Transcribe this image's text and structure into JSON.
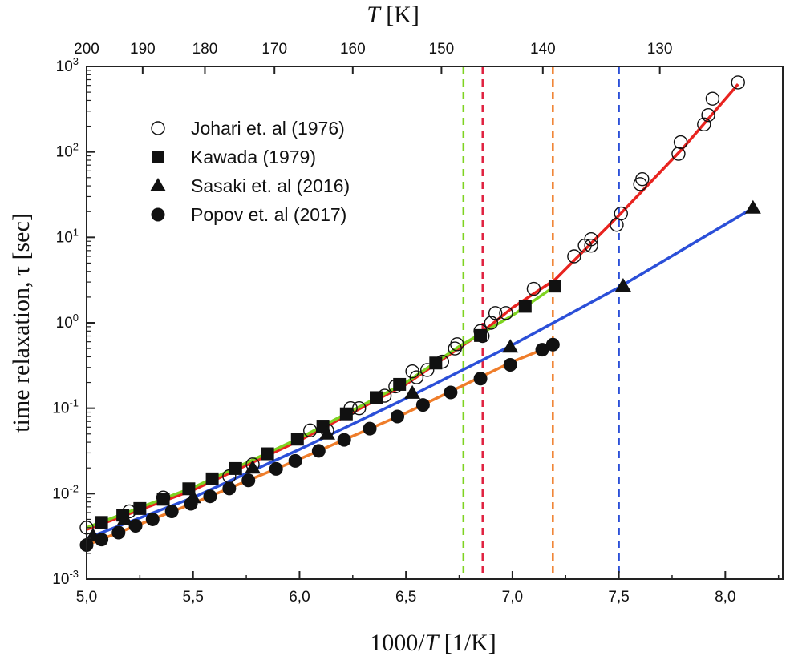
{
  "chart_data": {
    "type": "scatter",
    "title": "",
    "xlabel": "1000/T [1/K]",
    "xlabel_parts": {
      "pre": "1000/",
      "italic": "T",
      "post": " [1/K]"
    },
    "ylabel": "time relaxation, τ [sec]",
    "top_xlabel": {
      "italic": "T",
      "post": " [K]"
    },
    "xlim": [
      5.0,
      8.27
    ],
    "ylim": [
      0.001,
      1000
    ],
    "yscale": "log",
    "x_ticks": [
      "5,0",
      "5,5",
      "6,0",
      "6,5",
      "7,0",
      "7,5",
      "8,0"
    ],
    "x_tick_values": [
      5.0,
      5.5,
      6.0,
      6.5,
      7.0,
      7.5,
      8.0
    ],
    "y_tick_exponents": [
      "-3",
      "-2",
      "-1",
      "0",
      "1",
      "2",
      "3"
    ],
    "y_tick_base": "10",
    "top_ticks": [
      "200",
      "190",
      "180",
      "170",
      "160",
      "150",
      "140",
      "130"
    ],
    "top_tick_values_K": [
      200,
      190,
      180,
      170,
      160,
      150,
      140,
      130
    ],
    "legend_placement": "top-left",
    "series": [
      {
        "name": "Johari et. al (1976)",
        "marker": "open-circle",
        "x": [
          5.0,
          5.2,
          5.36,
          5.67,
          5.78,
          6.05,
          6.13,
          6.24,
          6.28,
          6.4,
          6.45,
          6.53,
          6.55,
          6.6,
          6.67,
          6.73,
          6.74,
          6.85,
          6.86,
          6.9,
          6.92,
          6.97,
          7.1,
          7.29,
          7.34,
          7.37,
          7.37,
          7.49,
          7.51,
          7.6,
          7.61,
          7.78,
          7.79,
          7.9,
          7.92,
          7.94,
          8.06
        ],
        "y": [
          0.004,
          0.0062,
          0.009,
          0.016,
          0.022,
          0.055,
          0.055,
          0.1,
          0.1,
          0.14,
          0.18,
          0.27,
          0.23,
          0.28,
          0.35,
          0.5,
          0.56,
          0.8,
          0.7,
          1.0,
          1.3,
          1.3,
          2.5,
          6,
          8,
          8,
          9.5,
          14,
          19,
          42,
          48,
          95,
          130,
          210,
          270,
          420,
          650
        ]
      },
      {
        "name": "Kawada (1979)",
        "marker": "filled-square",
        "x": [
          5.07,
          5.17,
          5.25,
          5.36,
          5.48,
          5.59,
          5.7,
          5.85,
          5.99,
          6.11,
          6.22,
          6.36,
          6.47,
          6.64,
          6.85,
          7.06,
          7.2
        ],
        "y": [
          0.0046,
          0.0056,
          0.0067,
          0.0086,
          0.0114,
          0.0149,
          0.0197,
          0.0293,
          0.0435,
          0.0617,
          0.0859,
          0.133,
          0.19,
          0.338,
          0.71,
          1.56,
          2.69
        ]
      },
      {
        "name": "Sasaki et. al (2016)",
        "marker": "filled-triangle",
        "x": [
          5.03,
          5.18,
          5.5,
          5.78,
          6.13,
          6.53,
          6.99,
          7.52,
          8.13
        ],
        "y": [
          0.0032,
          0.005,
          0.009,
          0.02,
          0.05,
          0.15,
          0.52,
          2.7,
          22
        ]
      },
      {
        "name": "Popov et. al (2017)",
        "marker": "filled-circle",
        "x": [
          5.0,
          5.07,
          5.15,
          5.23,
          5.31,
          5.4,
          5.49,
          5.58,
          5.67,
          5.76,
          5.89,
          5.98,
          6.09,
          6.21,
          6.33,
          6.46,
          6.58,
          6.71,
          6.85,
          6.99,
          7.14,
          7.19
        ],
        "y": [
          0.0025,
          0.0029,
          0.0035,
          0.0042,
          0.005,
          0.0062,
          0.0076,
          0.0093,
          0.0115,
          0.0143,
          0.0195,
          0.0242,
          0.0317,
          0.0427,
          0.0577,
          0.08,
          0.109,
          0.153,
          0.222,
          0.322,
          0.484,
          0.555
        ]
      }
    ],
    "fit_lines": [
      {
        "color": "#e8231f",
        "x": [
          5.0,
          5.5,
          6.0,
          6.5,
          6.85,
          7.0,
          7.2,
          7.5,
          7.8,
          8.06
        ],
        "y": [
          0.0038,
          0.011,
          0.042,
          0.19,
          0.75,
          1.5,
          3.2,
          18,
          110,
          620
        ]
      },
      {
        "color": "#2b4fd8",
        "x": [
          5.0,
          5.5,
          6.0,
          6.5,
          7.0,
          7.5,
          8.13
        ],
        "y": [
          0.003,
          0.009,
          0.033,
          0.13,
          0.55,
          2.6,
          22
        ]
      },
      {
        "color": "#ef7d2a",
        "x": [
          5.0,
          5.5,
          6.0,
          6.5,
          7.0,
          7.2
        ],
        "y": [
          0.0025,
          0.0077,
          0.0254,
          0.088,
          0.35,
          0.555
        ]
      },
      {
        "color": "#7ed321",
        "x": [
          5.0,
          5.5,
          6.0,
          6.5,
          6.75,
          7.0,
          7.2
        ],
        "y": [
          0.004,
          0.0118,
          0.0447,
          0.2,
          0.53,
          1.22,
          2.69
        ]
      }
    ],
    "vertical_dashed_lines": [
      {
        "x": 6.77,
        "color": "#7ed321"
      },
      {
        "x": 6.86,
        "color": "#e0213f"
      },
      {
        "x": 7.19,
        "color": "#ef7d2a"
      },
      {
        "x": 7.5,
        "color": "#2b4fd8"
      }
    ]
  }
}
